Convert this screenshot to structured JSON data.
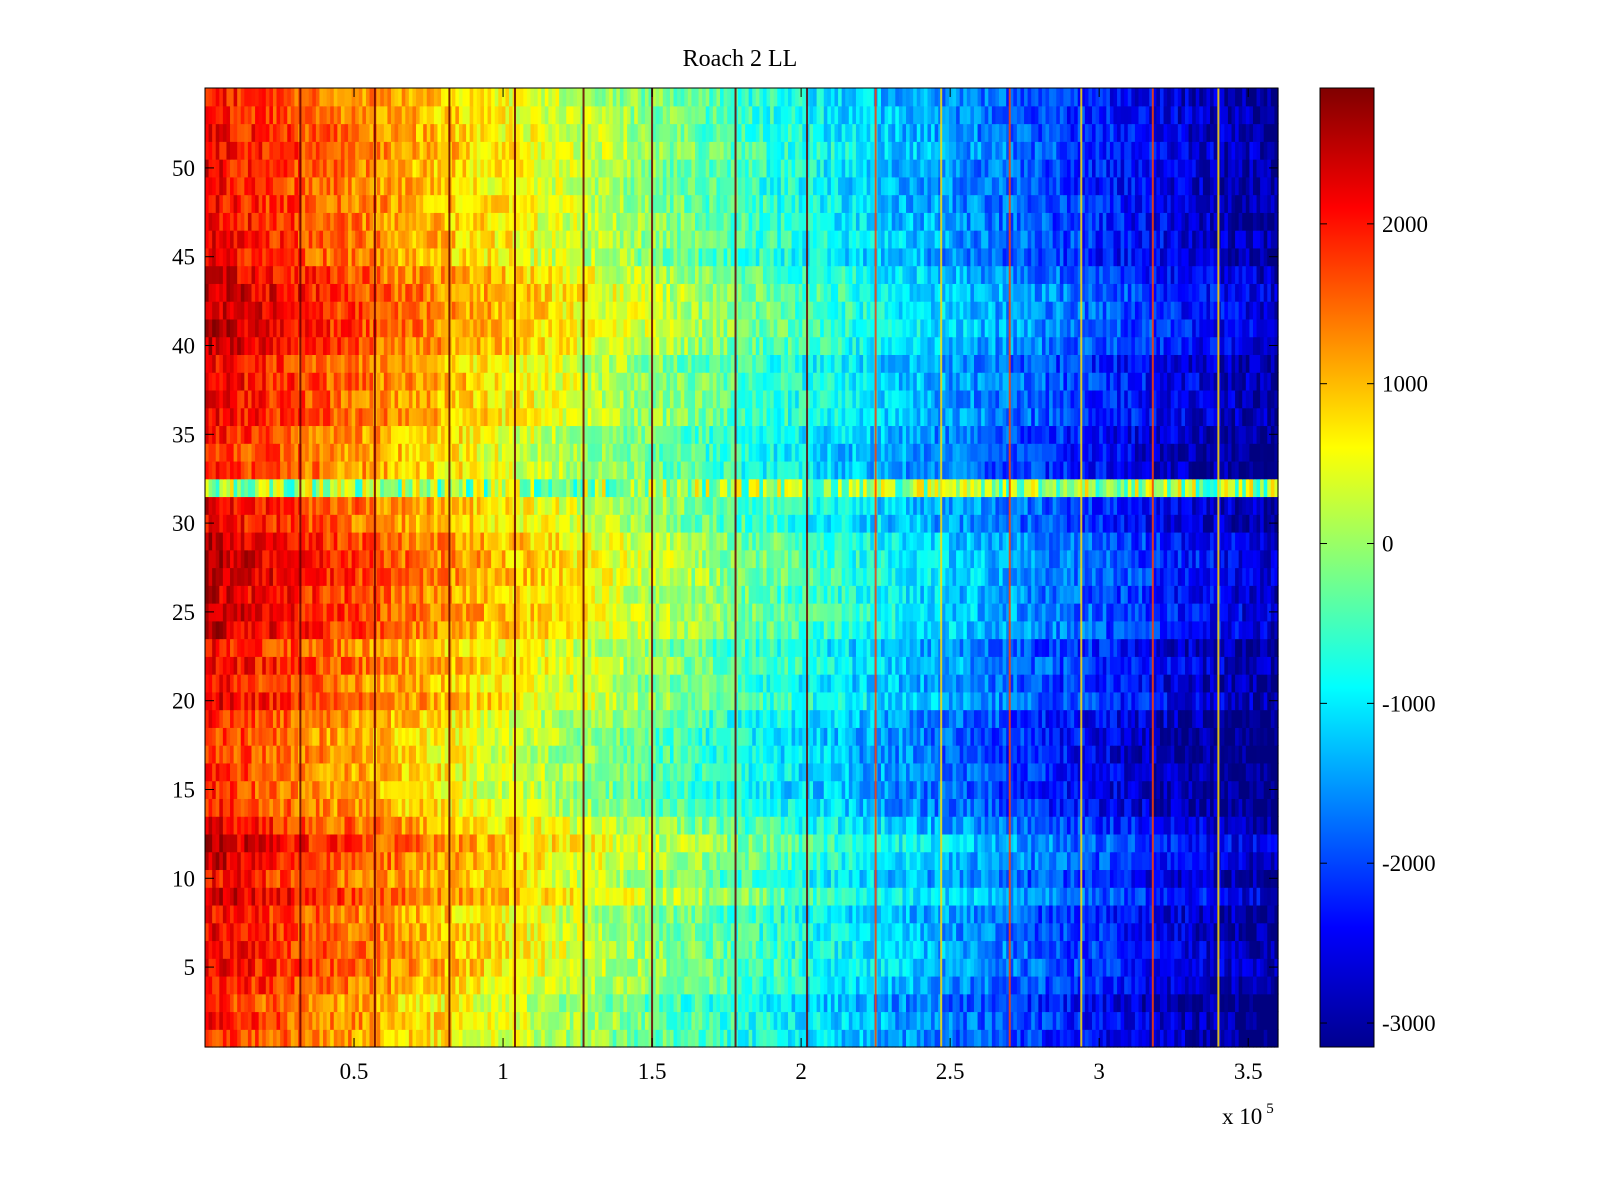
{
  "chart_data": {
    "type": "heatmap",
    "title": "Roach 2 LL",
    "xlabel": "",
    "ylabel": "",
    "colormap": "jet",
    "x_range": [
      0,
      360000
    ],
    "y_range": [
      0.5,
      54.5
    ],
    "x_ticks": [
      50000,
      100000,
      150000,
      200000,
      250000,
      300000,
      350000
    ],
    "x_tick_labels": [
      "0.5",
      "1",
      "1.5",
      "2",
      "2.5",
      "3",
      "3.5"
    ],
    "x_exponent_label": {
      "base": "x 10",
      "power": "5"
    },
    "y_ticks": [
      5,
      10,
      15,
      20,
      25,
      30,
      35,
      40,
      45,
      50
    ],
    "y_tick_labels": [
      "5",
      "10",
      "15",
      "20",
      "25",
      "30",
      "35",
      "40",
      "45",
      "50"
    ],
    "colorbar": {
      "range": [
        -3150,
        2850
      ],
      "ticks": [
        -3000,
        -2000,
        -1000,
        0,
        1000,
        2000
      ],
      "tick_labels": [
        "-3000",
        "-2000",
        "-1000",
        "0",
        "1000",
        "2000"
      ]
    },
    "trend": {
      "left_value": 2200,
      "right_value": -3000
    },
    "rows": {
      "count": 54,
      "anomalous_row": 32,
      "anomalous_row_value": 0,
      "warm_band_rows": [
        9,
        11,
        12,
        24,
        25,
        26,
        27,
        28,
        29,
        40,
        41,
        42,
        43,
        44
      ],
      "cool_band_rows": [
        1,
        2,
        3,
        14,
        15,
        16,
        17,
        18,
        19,
        33,
        34,
        35
      ]
    },
    "spike_lines_x": [
      32000,
      57000,
      82000,
      104000,
      127000,
      150000,
      178000,
      202000,
      225000,
      247000,
      270000,
      294000,
      318000,
      340000
    ]
  }
}
